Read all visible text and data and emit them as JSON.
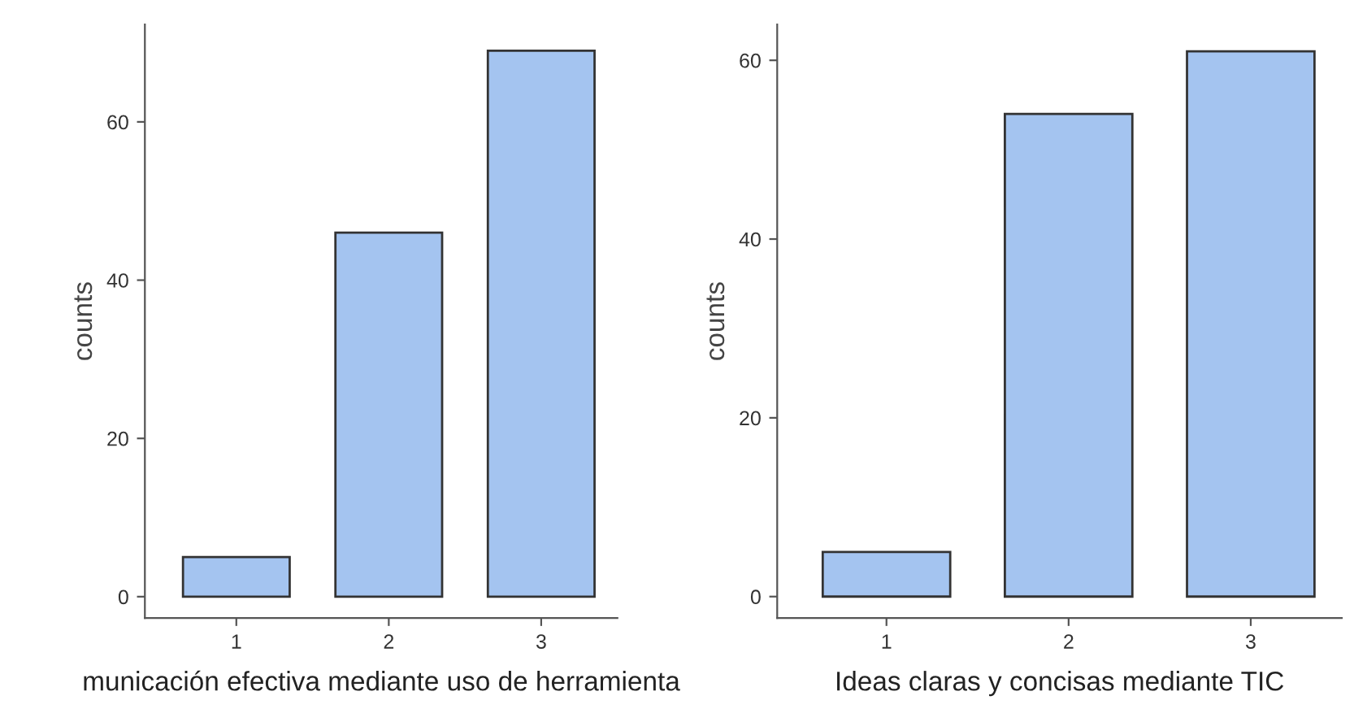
{
  "chart_data": [
    {
      "type": "bar",
      "categories": [
        "1",
        "2",
        "3"
      ],
      "values": [
        5,
        46,
        69
      ],
      "color": "#a4c4f0",
      "xlabel": "municación efectiva mediante uso de herramienta",
      "ylabel": "counts",
      "ylim": [
        -2.7,
        72.3
      ],
      "yticks": [
        0,
        20,
        40,
        60
      ],
      "grid": false
    },
    {
      "type": "bar",
      "categories": [
        "1",
        "2",
        "3"
      ],
      "values": [
        5,
        54,
        61
      ],
      "color": "#a4c4f0",
      "xlabel": "Ideas claras y concisas mediante TIC",
      "ylabel": "counts",
      "ylim": [
        -2.4,
        64
      ],
      "yticks": [
        0,
        20,
        40,
        60
      ],
      "grid": false
    }
  ]
}
